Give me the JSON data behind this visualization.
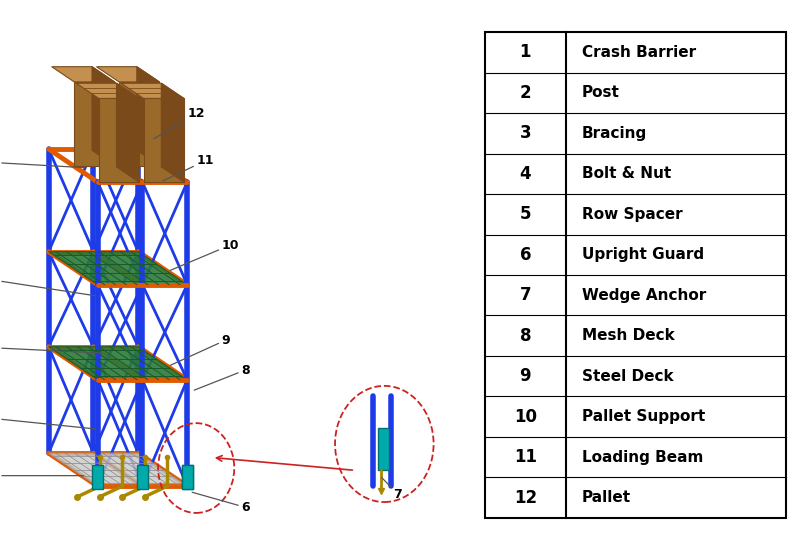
{
  "bg_color": "#ffffff",
  "table_items": [
    [
      1,
      "Crash Barrier"
    ],
    [
      2,
      "Post"
    ],
    [
      3,
      "Bracing"
    ],
    [
      4,
      "Bolt & Nut"
    ],
    [
      5,
      "Row Spacer"
    ],
    [
      6,
      "Upright Guard"
    ],
    [
      7,
      "Wedge Anchor"
    ],
    [
      8,
      "Mesh Deck"
    ],
    [
      9,
      "Steel Deck"
    ],
    [
      10,
      "Pallet Support"
    ],
    [
      11,
      "Loading Beam"
    ],
    [
      12,
      "Pallet"
    ]
  ],
  "colors": {
    "blue": "#1e3be8",
    "orange": "#e05a00",
    "green": "#2a7a3a",
    "green_light": "#3a9a4a",
    "brown_dark": "#7a4a1a",
    "brown_mid": "#9a6a2a",
    "brown_light": "#c49050",
    "teal": "#00aaaa",
    "gold": "#aa8800",
    "white": "#ffffff",
    "black": "#000000",
    "gray": "#888888",
    "light_gray": "#cccccc",
    "mesh_gray": "#b0b0b0",
    "red": "#cc2222"
  }
}
